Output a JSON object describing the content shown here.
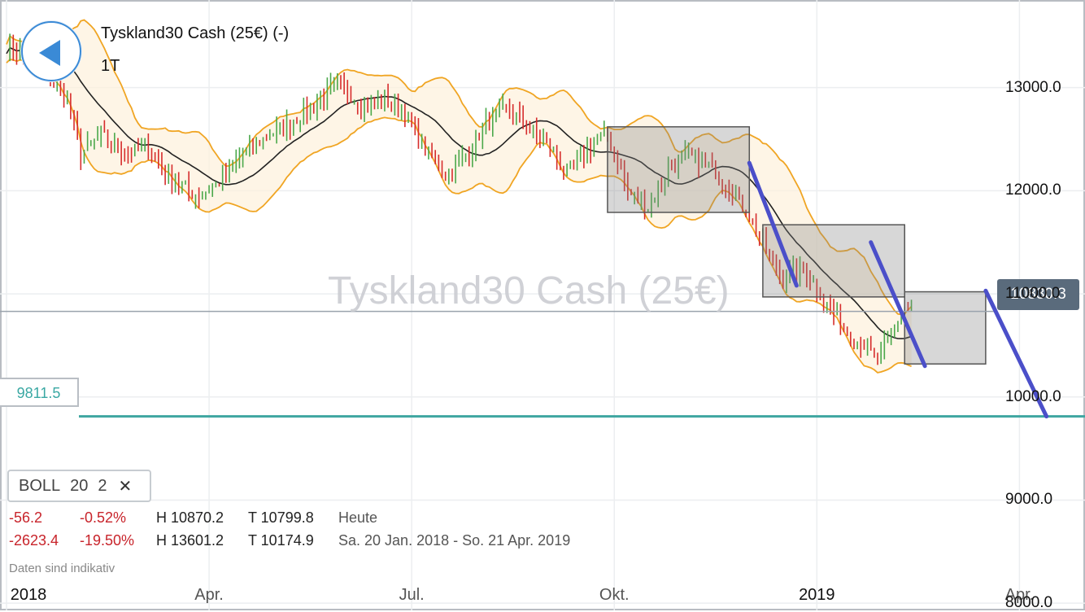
{
  "header": {
    "title": "Tyskland30 Cash (25€) (-)",
    "timeframe": "1T",
    "watermark": "Tyskland30 Cash (25€)"
  },
  "indicator": {
    "name": "BOLL",
    "period": "20",
    "deviation": "2",
    "close_glyph": "✕"
  },
  "stats_today": {
    "change": "-56.2",
    "change_pct": "-0.52%",
    "high": "H 10870.2",
    "low": "T 10799.8",
    "period": "Heute"
  },
  "stats_range": {
    "change": "-2623.4",
    "change_pct": "-19.50%",
    "high": "H 13601.2",
    "low": "T 10174.9",
    "period": "Sa. 20 Jan. 2018 - So. 21 Apr. 2019"
  },
  "disclaimer": "Daten sind indikativ",
  "current_price": "10830.3",
  "support_level": "9811.5",
  "chart_data": {
    "type": "candlestick",
    "y_ticks": [
      "8000.0",
      "9000.0",
      "10000.0",
      "11000.0",
      "12000.0",
      "13000.0"
    ],
    "ylim": [
      7930,
      13850
    ],
    "x_ticks": [
      {
        "label": "2018",
        "month": 0,
        "bold": true
      },
      {
        "label": "Apr.",
        "month": 3
      },
      {
        "label": "Jul.",
        "month": 6
      },
      {
        "label": "Okt.",
        "month": 9
      },
      {
        "label": "2019",
        "month": 12,
        "bold": true
      },
      {
        "label": "Apr.",
        "month": 15
      }
    ],
    "current_price_value": 10830.3,
    "support_value": 9811.5,
    "indicator": "Bollinger Bands (20, 2)",
    "price_path": [
      [
        0.0,
        13400
      ],
      [
        0.5,
        13250
      ],
      [
        0.9,
        12900
      ],
      [
        1.1,
        12350
      ],
      [
        1.4,
        12550
      ],
      [
        1.8,
        12350
      ],
      [
        2.1,
        12450
      ],
      [
        2.4,
        12150
      ],
      [
        2.8,
        11950
      ],
      [
        3.1,
        12050
      ],
      [
        3.5,
        12350
      ],
      [
        3.9,
        12550
      ],
      [
        4.3,
        12700
      ],
      [
        4.6,
        12850
      ],
      [
        4.9,
        13050
      ],
      [
        5.3,
        12800
      ],
      [
        5.6,
        12900
      ],
      [
        5.9,
        12750
      ],
      [
        6.2,
        12400
      ],
      [
        6.5,
        12150
      ],
      [
        6.8,
        12350
      ],
      [
        7.1,
        12650
      ],
      [
        7.4,
        12800
      ],
      [
        7.7,
        12650
      ],
      [
        8.0,
        12450
      ],
      [
        8.3,
        12150
      ],
      [
        8.6,
        12400
      ],
      [
        8.9,
        12550
      ],
      [
        9.2,
        12000
      ],
      [
        9.5,
        11850
      ],
      [
        9.8,
        12200
      ],
      [
        10.1,
        12350
      ],
      [
        10.4,
        12250
      ],
      [
        10.7,
        12050
      ],
      [
        11.0,
        11750
      ],
      [
        11.3,
        11350
      ],
      [
        11.5,
        11150
      ],
      [
        11.8,
        11250
      ],
      [
        12.1,
        10950
      ],
      [
        12.4,
        10650
      ],
      [
        12.7,
        10500
      ],
      [
        12.9,
        10350
      ],
      [
        13.1,
        10600
      ],
      [
        13.3,
        10850
      ],
      [
        13.4,
        10830
      ]
    ],
    "rectangles": [
      {
        "x0": 8.9,
        "x1": 11.0,
        "y_high": 12620,
        "y_low": 11790
      },
      {
        "x0": 11.2,
        "x1": 13.3,
        "y_high": 11670,
        "y_low": 10970
      },
      {
        "x0": 13.3,
        "x1": 14.5,
        "y_high": 11020,
        "y_low": 10320
      }
    ],
    "trend_lines": [
      {
        "x0": 11.0,
        "y0": 12270,
        "x1": 11.7,
        "y1": 11080
      },
      {
        "x0": 12.8,
        "y0": 11500,
        "x1": 13.6,
        "y1": 10300
      },
      {
        "x0": 14.5,
        "y0": 11030,
        "x1": 15.4,
        "y1": 9811.5
      }
    ]
  }
}
